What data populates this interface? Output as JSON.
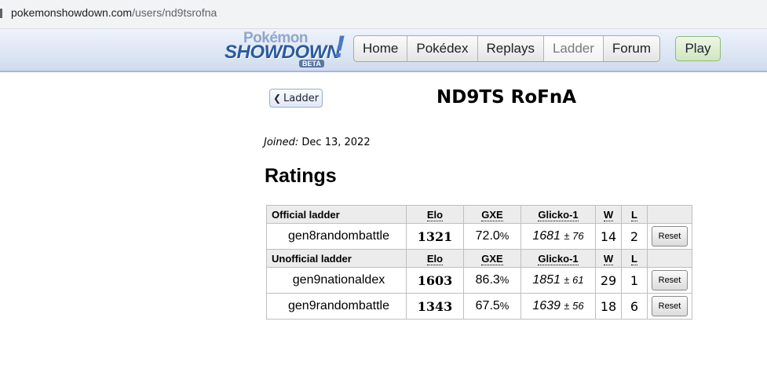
{
  "browser": {
    "url_host": "pokemonshowdown.com",
    "url_path": "/users/nd9tsrofna"
  },
  "header": {
    "logo_pokemon": "Pokémon",
    "logo_showdown": "SHOWDOWN",
    "logo_beta": "BETA",
    "logo_bang": "!",
    "nav": [
      "Home",
      "Pokédex",
      "Replays",
      "Ladder",
      "Forum"
    ],
    "current_nav": "Ladder",
    "play": "Play"
  },
  "profile": {
    "back_label": "Ladder",
    "username": "ND9TS RoFnA",
    "joined_label": "Joined:",
    "joined_date": "Dec 13, 2022"
  },
  "ratings": {
    "title": "Ratings",
    "columns": {
      "elo": "Elo",
      "gxe": "GXE",
      "glicko": "Glicko-1",
      "w": "W",
      "l": "L"
    },
    "official": {
      "label": "Official ladder",
      "rows": [
        {
          "format": "gen8randombattle",
          "elo": "1321",
          "gxe": "72.0",
          "gxe_unit": "%",
          "glicko": "1681",
          "glicko_dev": "± 76",
          "w": "14",
          "l": "2",
          "reset": "Reset"
        }
      ]
    },
    "unofficial": {
      "label": "Unofficial ladder",
      "rows": [
        {
          "format": "gen9nationaldex",
          "elo": "1603",
          "gxe": "86.3",
          "gxe_unit": "%",
          "glicko": "1851",
          "glicko_dev": "± 61",
          "w": "29",
          "l": "1",
          "reset": "Reset"
        },
        {
          "format": "gen9randombattle",
          "elo": "1343",
          "gxe": "67.5",
          "gxe_unit": "%",
          "glicko": "1639",
          "glicko_dev": "± 56",
          "w": "18",
          "l": "6",
          "reset": "Reset"
        }
      ]
    }
  }
}
